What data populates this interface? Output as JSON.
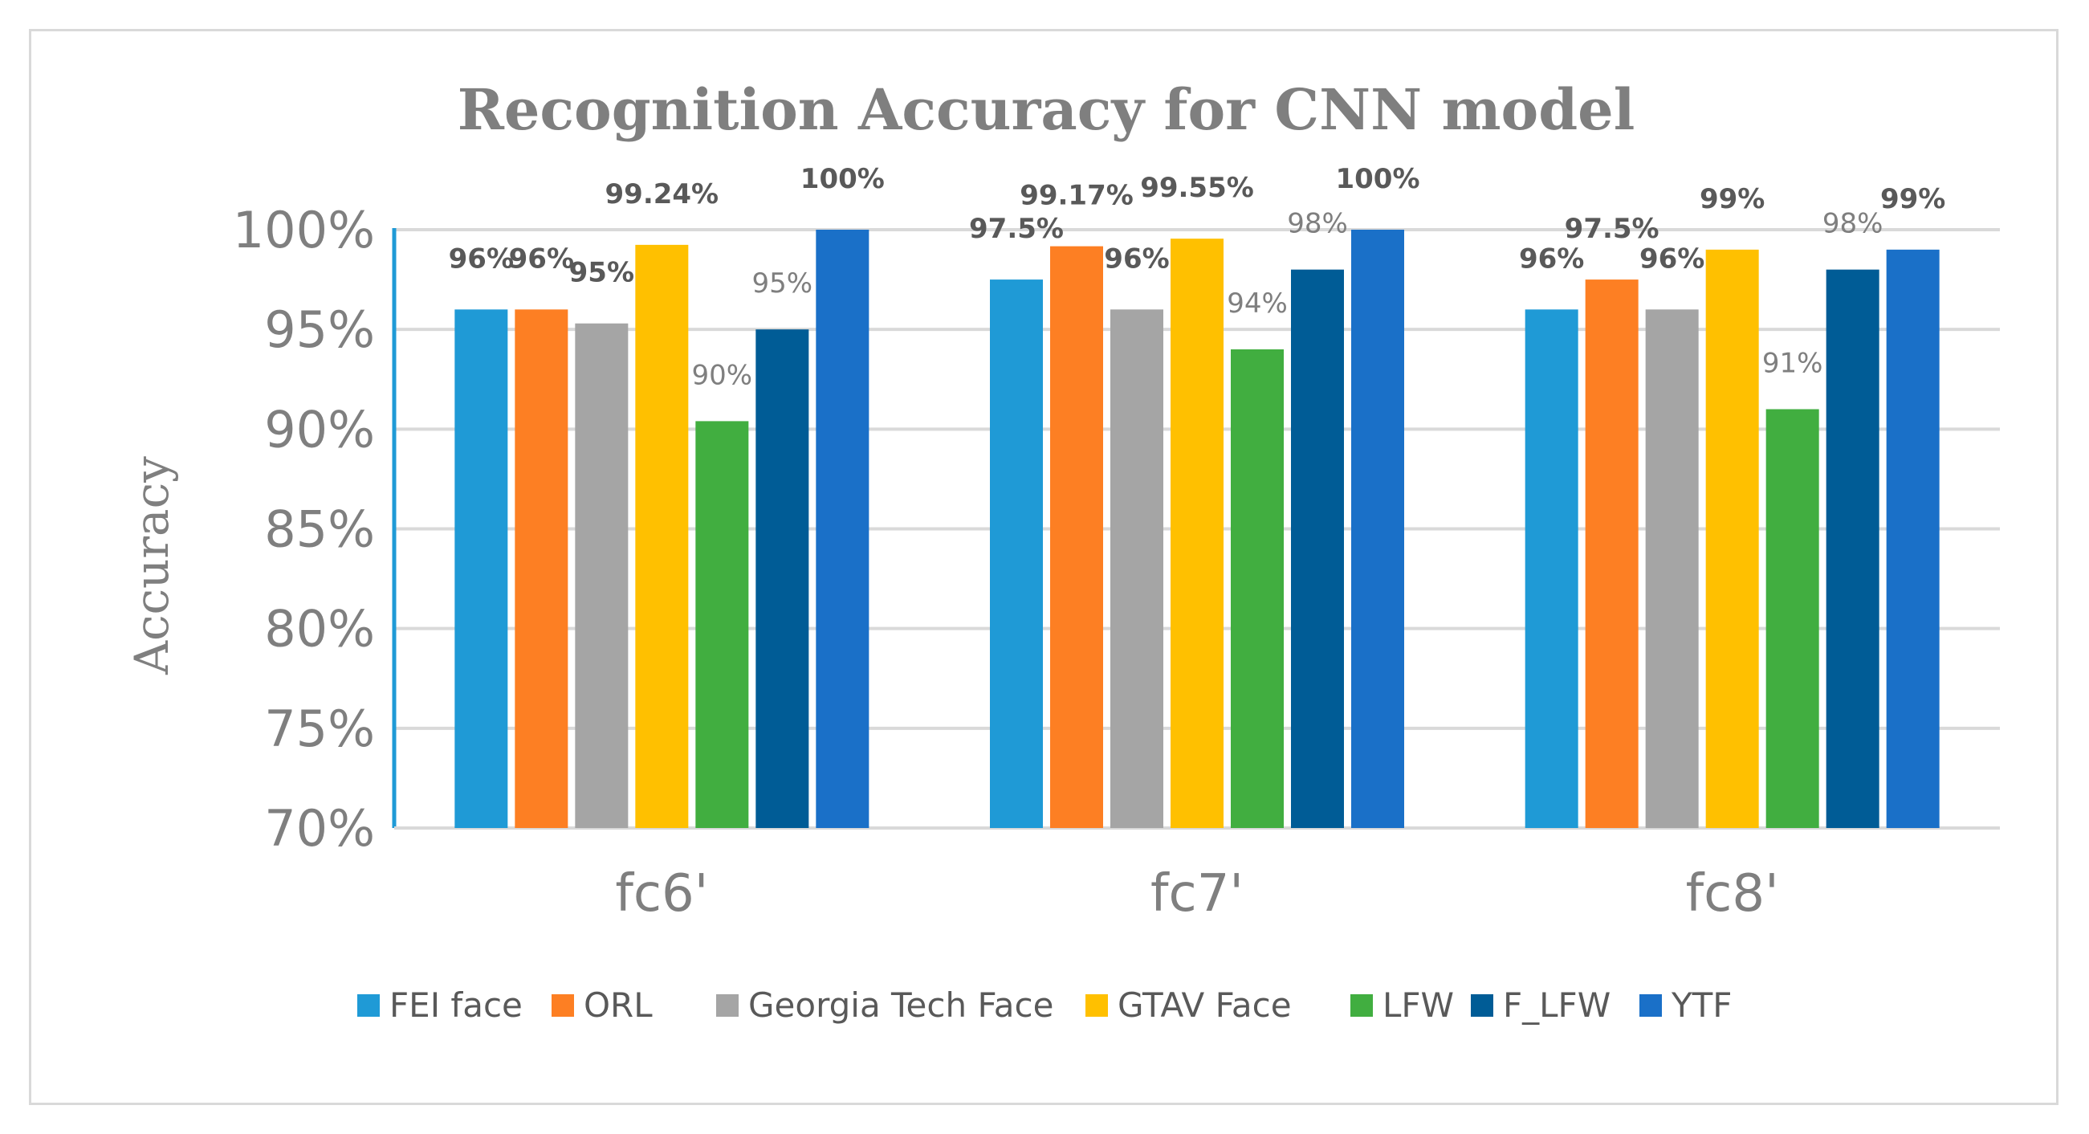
{
  "chart_data": {
    "type": "bar",
    "title": "Recognition Accuracy for CNN model",
    "ylabel": "Accuracy",
    "xlabel": "",
    "ylim": [
      70,
      100
    ],
    "yticks": [
      "70%",
      "75%",
      "80%",
      "85%",
      "90%",
      "95%",
      "100%"
    ],
    "grid": true,
    "legend_position": "bottom",
    "categories": [
      "fc6'",
      "fc7'",
      "fc8'"
    ],
    "series": [
      {
        "name": "FEI face",
        "color": "#1f9ad6",
        "values": [
          96,
          97.5,
          96
        ],
        "labels": [
          "96%",
          "97.5%",
          "96%"
        ],
        "label_bold": [
          true,
          true,
          true
        ]
      },
      {
        "name": "ORL",
        "color": "#fd7f23",
        "values": [
          96,
          99.17,
          97.5
        ],
        "labels": [
          "96%",
          "99.17%",
          "97.5%"
        ],
        "label_bold": [
          true,
          true,
          true
        ]
      },
      {
        "name": "Georgia Tech Face",
        "color": "#a5a5a5",
        "values": [
          95.3,
          96,
          96
        ],
        "labels": [
          "95%",
          "96%",
          "96%"
        ],
        "label_bold": [
          true,
          true,
          true
        ]
      },
      {
        "name": "GTAV Face",
        "color": "#ffc000",
        "values": [
          99.24,
          99.55,
          99
        ],
        "labels": [
          "99.24%",
          "99.55%",
          "99%"
        ],
        "label_bold": [
          true,
          true,
          true
        ]
      },
      {
        "name": "LFW",
        "color": "#41ae40",
        "values": [
          90.4,
          94,
          91
        ],
        "labels": [
          "90%",
          "94%",
          "91%"
        ],
        "label_bold": [
          false,
          false,
          false
        ]
      },
      {
        "name": "F_LFW",
        "color": "#005c96",
        "values": [
          95,
          98,
          98
        ],
        "labels": [
          "95%",
          "98%",
          "98%"
        ],
        "label_bold": [
          false,
          false,
          false
        ]
      },
      {
        "name": "YTF",
        "color": "#1a70c8",
        "values": [
          100,
          100,
          99
        ],
        "labels": [
          "100%",
          "100%",
          "99%"
        ],
        "label_bold": [
          true,
          true,
          true
        ]
      }
    ]
  }
}
